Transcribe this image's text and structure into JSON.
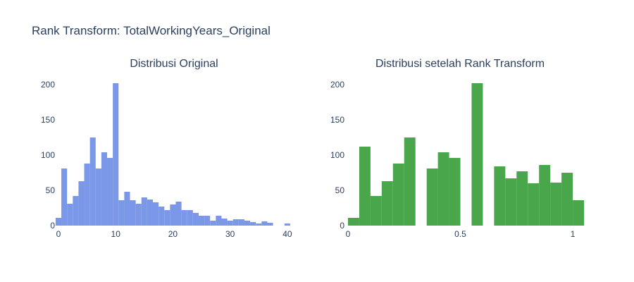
{
  "title": "Rank Transform: TotalWorkingYears_Original",
  "colors": {
    "original": "#7b97e8",
    "rank": "#4aa64a",
    "text": "#2a3f5f"
  },
  "chart_data": [
    {
      "type": "bar",
      "title": "Distribusi Original",
      "xlabel": "",
      "ylabel": "",
      "bin_width": 1,
      "x": [
        0,
        1,
        2,
        3,
        4,
        5,
        6,
        7,
        8,
        9,
        10,
        11,
        12,
        13,
        14,
        15,
        16,
        17,
        18,
        19,
        20,
        21,
        22,
        23,
        24,
        25,
        26,
        27,
        28,
        29,
        30,
        31,
        32,
        33,
        34,
        35,
        36,
        37,
        38,
        39,
        40
      ],
      "values": [
        11,
        81,
        31,
        42,
        63,
        88,
        125,
        81,
        104,
        96,
        202,
        36,
        48,
        36,
        31,
        40,
        37,
        33,
        27,
        22,
        30,
        34,
        22,
        22,
        18,
        14,
        14,
        7,
        14,
        10,
        7,
        9,
        9,
        7,
        5,
        3,
        6,
        4,
        0,
        0,
        3
      ],
      "xlim": [
        0,
        41
      ],
      "ylim": [
        0,
        210
      ],
      "xticks": [
        "0",
        "10",
        "20",
        "30",
        "40"
      ],
      "yticks": [
        "0",
        "50",
        "100",
        "150",
        "200"
      ],
      "grid": false,
      "legend": false
    },
    {
      "type": "bar",
      "title": "Distribusi setelah Rank Transform",
      "xlabel": "",
      "ylabel": "",
      "bin_width": 0.05,
      "x": [
        0,
        0.05,
        0.1,
        0.15,
        0.2,
        0.25,
        0.3,
        0.35,
        0.4,
        0.45,
        0.5,
        0.55,
        0.6,
        0.65,
        0.7,
        0.75,
        0.8,
        0.85,
        0.9,
        0.95,
        1.0
      ],
      "values": [
        11,
        112,
        42,
        63,
        88,
        125,
        0,
        81,
        104,
        96,
        0,
        202,
        0,
        84,
        67,
        77,
        60,
        86,
        61,
        75,
        36
      ],
      "xlim": [
        0,
        1.05
      ],
      "ylim": [
        0,
        210
      ],
      "xticks": [
        "0",
        "0.5",
        "1"
      ],
      "yticks": [
        "0",
        "50",
        "100",
        "150",
        "200"
      ],
      "grid": false,
      "legend": false
    }
  ]
}
